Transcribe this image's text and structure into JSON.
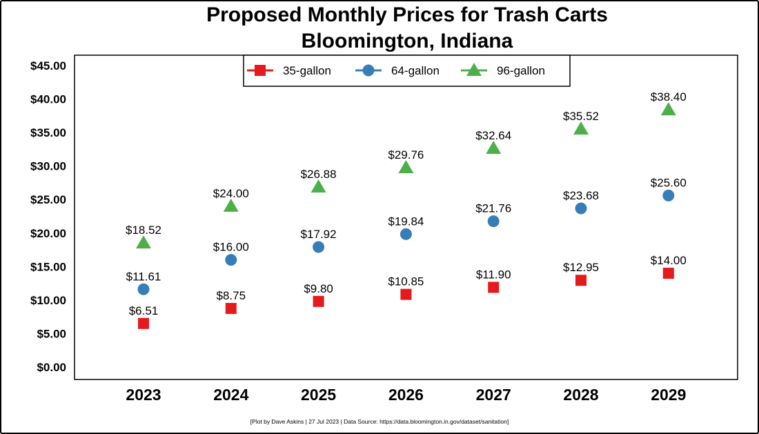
{
  "chart_data": {
    "type": "scatter",
    "title": [
      "Proposed Monthly Prices for Trash Carts",
      "Bloomington, Indiana"
    ],
    "xlabel": "",
    "ylabel": "",
    "categories": [
      "2023",
      "2024",
      "2025",
      "2026",
      "2027",
      "2028",
      "2029"
    ],
    "ylim": [
      0,
      45
    ],
    "yticks": [
      "$0.00",
      "$5.00",
      "$10.00",
      "$15.00",
      "$20.00",
      "$25.00",
      "$30.00",
      "$35.00",
      "$40.00",
      "$45.00"
    ],
    "grid": false,
    "legend_position": "top-center",
    "series": [
      {
        "name": "35-gallon",
        "color": "#e41a1c",
        "marker": "square",
        "values": [
          6.51,
          8.75,
          9.8,
          10.85,
          11.9,
          12.95,
          14.0
        ],
        "labels": [
          "$6.51",
          "$8.75",
          "$9.80",
          "$10.85",
          "$11.90",
          "$12.95",
          "$14.00"
        ]
      },
      {
        "name": "64-gallon",
        "color": "#377eb8",
        "marker": "circle",
        "values": [
          11.61,
          16.0,
          17.92,
          19.84,
          21.76,
          23.68,
          25.6
        ],
        "labels": [
          "$11.61",
          "$16.00",
          "$17.92",
          "$19.84",
          "$21.76",
          "$23.68",
          "$25.60"
        ]
      },
      {
        "name": "96-gallon",
        "color": "#4daf4a",
        "marker": "triangle",
        "values": [
          18.52,
          24.0,
          26.88,
          29.76,
          32.64,
          35.52,
          38.4
        ],
        "labels": [
          "$18.52",
          "$24.00",
          "$26.88",
          "$29.76",
          "$32.64",
          "$35.52",
          "$38.40"
        ]
      }
    ],
    "caption": "[Plot by Dave Askins | 27 Jul 2023 | Data Source: https://data.bloomington.in.gov/dataset/sanitation]"
  }
}
